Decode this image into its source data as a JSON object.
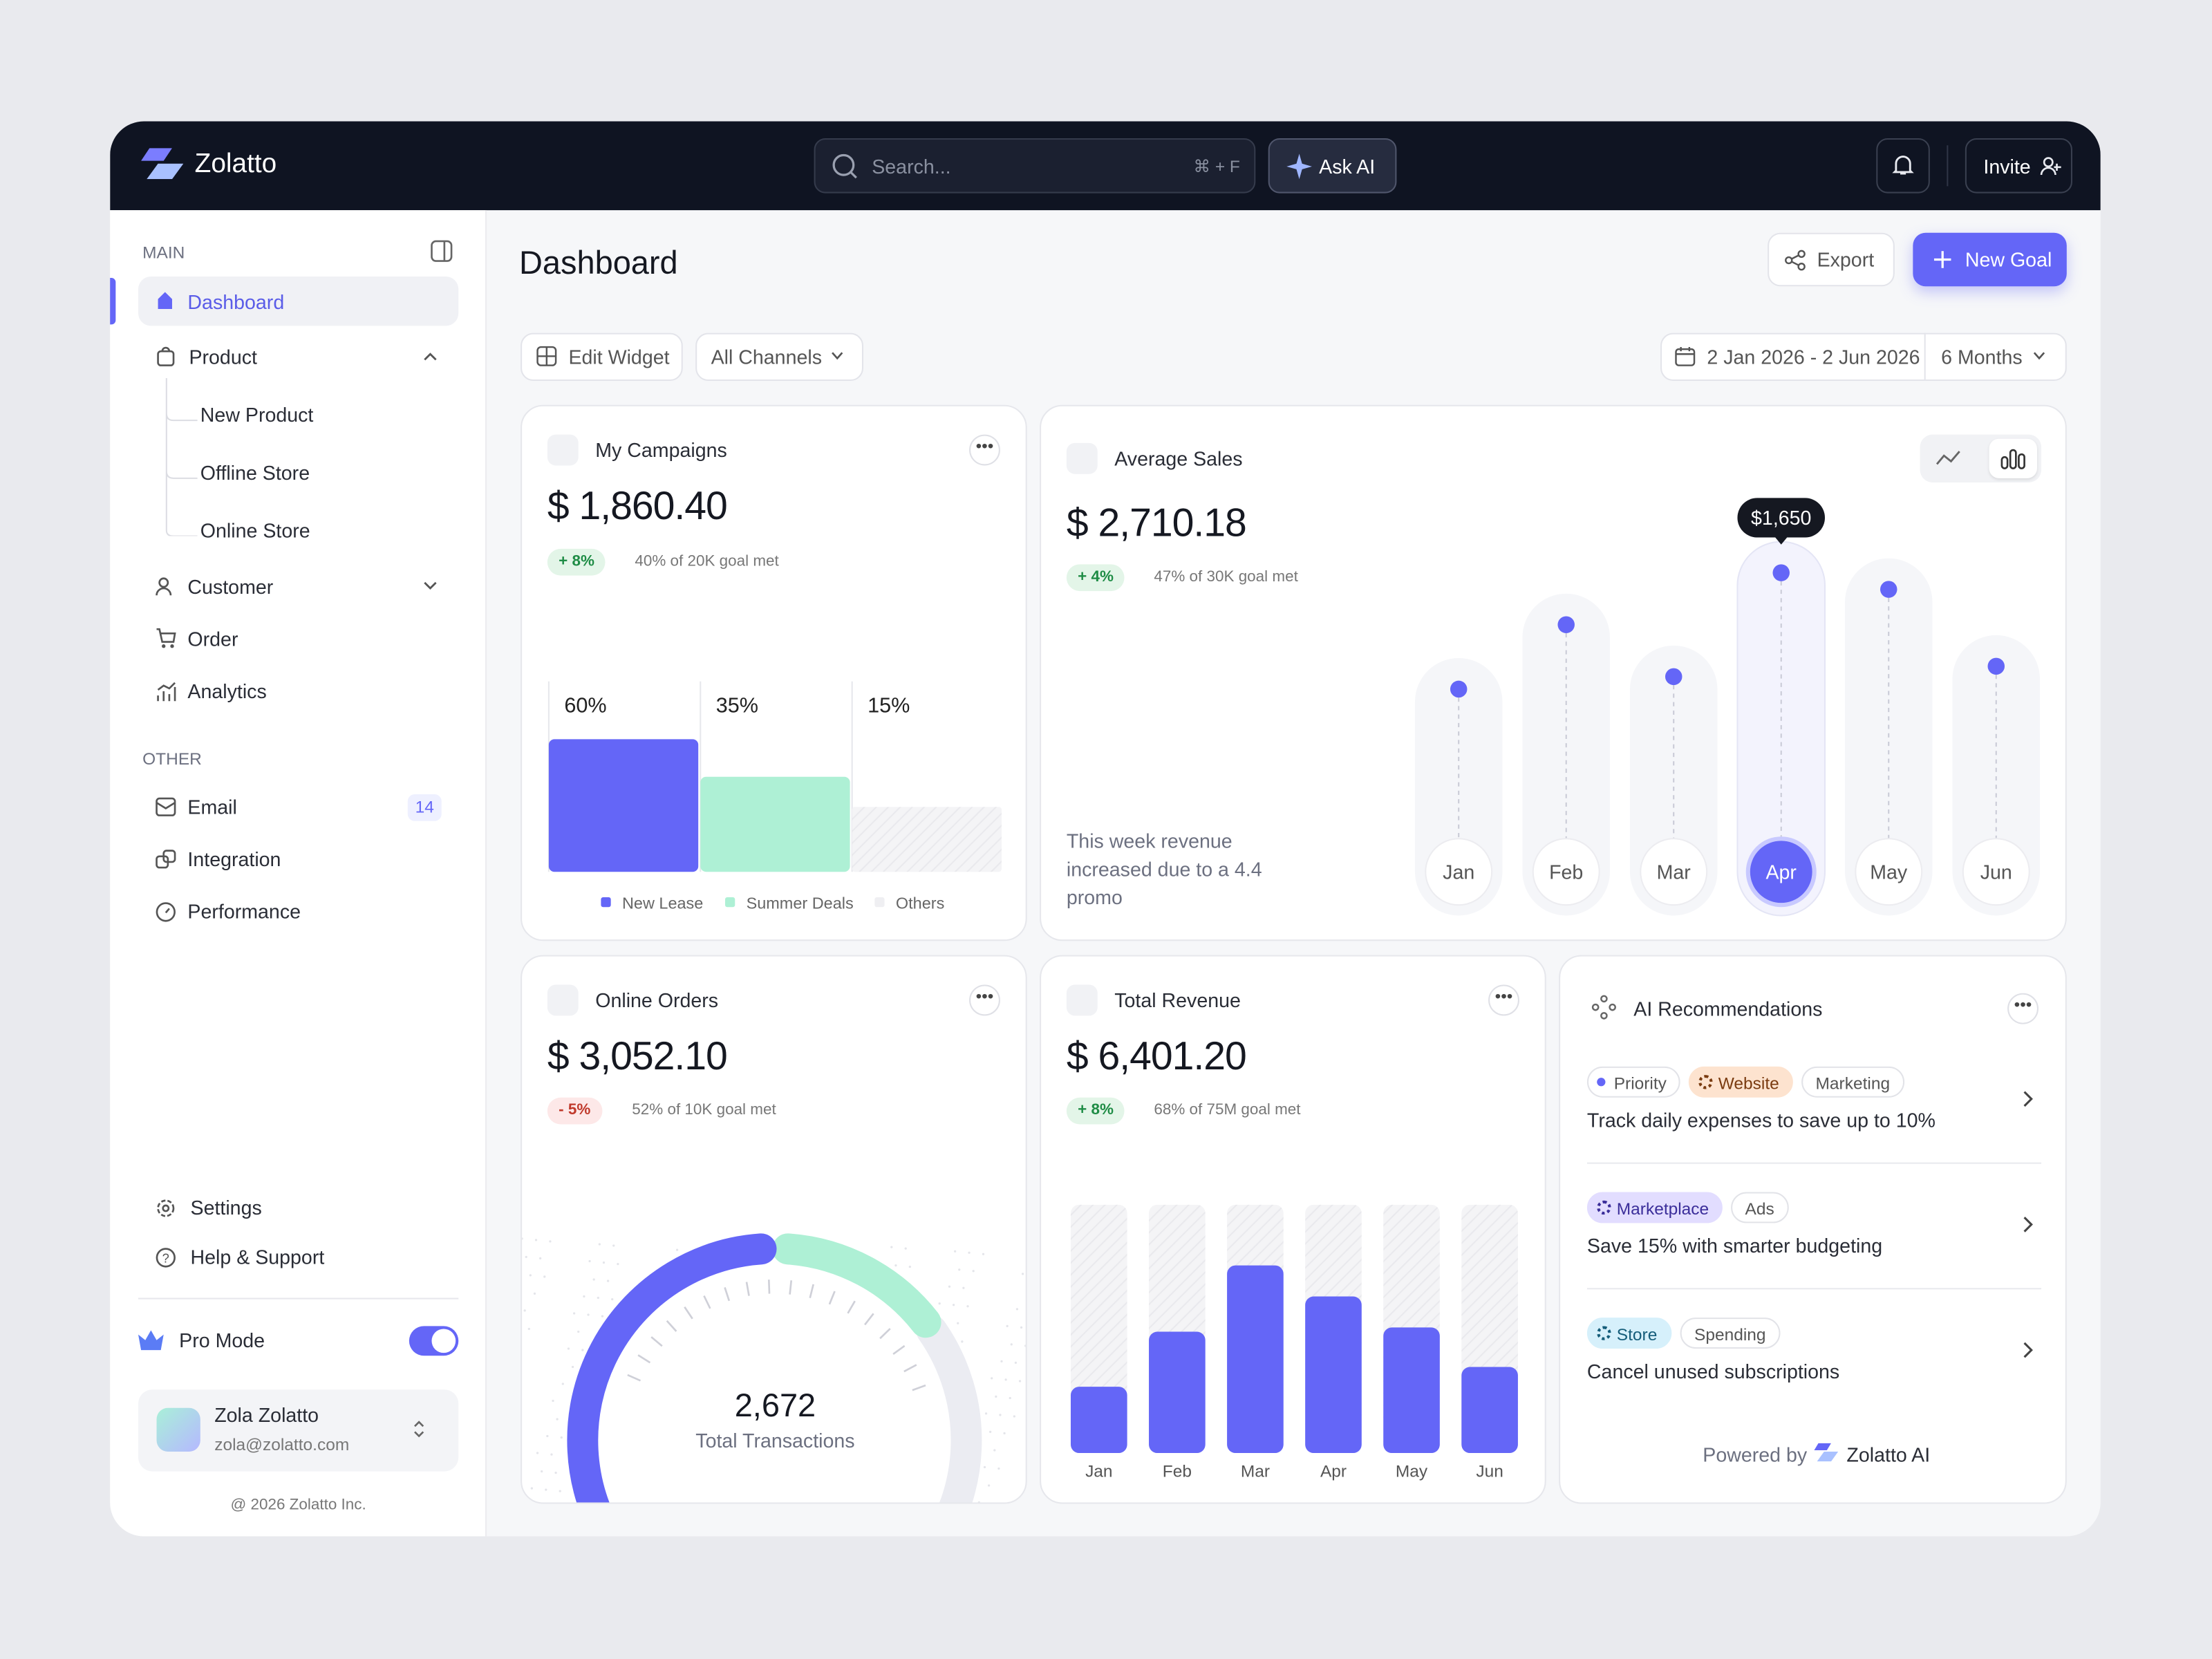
{
  "header": {
    "brand": "Zolatto",
    "search_placeholder": "Search...",
    "shortcut": "⌘ + F",
    "ask_ai": "Ask AI",
    "invite": "Invite"
  },
  "sidebar": {
    "main_label": "MAIN",
    "nav": [
      "Dashboard",
      "Product",
      "Customer",
      "Order",
      "Analytics"
    ],
    "product_sub": [
      "New Product",
      "Offline Store",
      "Online Store"
    ],
    "other_label": "OTHER",
    "other": [
      {
        "label": "Email",
        "badge": "14"
      },
      {
        "label": "Integration"
      },
      {
        "label": "Performance"
      }
    ],
    "settings": "Settings",
    "help": "Help & Support",
    "pro_mode": "Pro Mode",
    "user": {
      "name": "Zola Zolatto",
      "email": "zola@zolatto.com"
    },
    "footer": "@ 2026 Zolatto Inc."
  },
  "page": {
    "title": "Dashboard",
    "export": "Export",
    "new_goal": "New Goal",
    "edit_widget": "Edit Widget",
    "channels": "All Channels",
    "date_range": "2 Jan 2026 - 2 Jun 2026",
    "period": "6 Months"
  },
  "campaigns": {
    "title": "My Campaigns",
    "value": "$ 1,860.40",
    "change": "+ 8%",
    "goal": "40% of 20K goal met",
    "chart_data": {
      "type": "bar",
      "categories": [
        "New Lease",
        "Summer Deals",
        "Others"
      ],
      "values": [
        60,
        35,
        15
      ],
      "value_labels": [
        "60%",
        "35%",
        "15%"
      ],
      "colors": [
        "#6466f7",
        "#aef0d5",
        "#efeff2"
      ]
    }
  },
  "sales": {
    "title": "Average Sales",
    "value": "$ 2,710.18",
    "change": "+ 4%",
    "goal": "47% of 30K goal met",
    "note": "This week revenue increased due to a 4.4 promo",
    "chart_data": {
      "type": "dot",
      "categories": [
        "Jan",
        "Feb",
        "Mar",
        "Apr",
        "May",
        "Jun"
      ],
      "values": [
        1090,
        1400,
        1150,
        1650,
        1570,
        1200
      ],
      "highlight": "Apr",
      "tooltip": "$1,650",
      "color": "#6466f7"
    }
  },
  "orders": {
    "title": "Online Orders",
    "value": "$ 3,052.10",
    "change": "- 5%",
    "goal": "52% of 10K goal met",
    "total": "2,672",
    "total_label": "Total Transactions"
  },
  "revenue": {
    "title": "Total Revenue",
    "value": "$ 6,401.20",
    "change": "+ 8%",
    "goal": "68% of 75M goal met",
    "chart_data": {
      "type": "bar",
      "categories": [
        "Jan",
        "Feb",
        "Mar",
        "Apr",
        "May",
        "Jun"
      ],
      "values": [
        47,
        86,
        133,
        111,
        89,
        61
      ],
      "color": "#6466f7"
    }
  },
  "ai": {
    "title": "AI Recommendations",
    "items": [
      {
        "tags": [
          "Priority",
          "Website",
          "Marketing"
        ],
        "text": "Track daily expenses to save up to 10%"
      },
      {
        "tags": [
          "Marketplace",
          "Ads"
        ],
        "text": "Save 15% with smarter budgeting"
      },
      {
        "tags": [
          "Store",
          "Spending"
        ],
        "text": "Cancel unused subscriptions"
      }
    ],
    "powered_by": "Powered by",
    "brand": "Zolatto AI"
  }
}
